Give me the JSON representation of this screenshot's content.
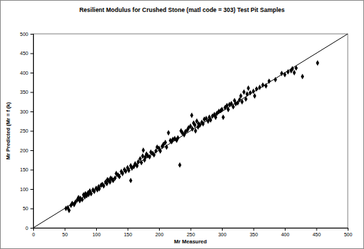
{
  "chart_data": {
    "type": "scatter",
    "title": "Resilient Modulus for Crushed Stone (matl code = 303) Test Pit Samples",
    "x_label": "Mr Measured",
    "y_label": "Mr Predicted (Mr = f (k)",
    "xlim": [
      0,
      500
    ],
    "ylim": [
      0,
      500
    ],
    "xticks": [
      0,
      50,
      100,
      150,
      200,
      250,
      300,
      350,
      400,
      450,
      500
    ],
    "yticks": [
      0,
      50,
      100,
      150,
      200,
      250,
      300,
      350,
      400,
      450,
      500
    ],
    "grid": false,
    "series": [
      {
        "type": "scatter",
        "marker": "diamond",
        "color": "#000000",
        "x": [
          52,
          55,
          57,
          60,
          62,
          65,
          67,
          70,
          72,
          74,
          75,
          78,
          80,
          82,
          83,
          85,
          87,
          88,
          90,
          92,
          95,
          97,
          100,
          102,
          104,
          105,
          108,
          110,
          112,
          115,
          117,
          118,
          120,
          122,
          123,
          125,
          127,
          130,
          132,
          135,
          137,
          140,
          142,
          145,
          147,
          150,
          152,
          155,
          155,
          157,
          160,
          162,
          165,
          167,
          170,
          172,
          174,
          175,
          177,
          178,
          180,
          182,
          185,
          187,
          190,
          192,
          195,
          197,
          200,
          202,
          205,
          207,
          210,
          212,
          215,
          218,
          220,
          222,
          225,
          228,
          230,
          233,
          235,
          237,
          240,
          242,
          245,
          247,
          250,
          252,
          253,
          255,
          257,
          258,
          260,
          262,
          263,
          265,
          268,
          270,
          272,
          275,
          278,
          280,
          282,
          285,
          288,
          290,
          292,
          295,
          298,
          300,
          302,
          305,
          308,
          310,
          312,
          315,
          318,
          320,
          322,
          325,
          328,
          330,
          332,
          335,
          338,
          340,
          342,
          345,
          350,
          352,
          355,
          360,
          365,
          370,
          375,
          385,
          395,
          400,
          405,
          410,
          412,
          415,
          418,
          428,
          452
        ],
        "values": [
          50,
          52,
          45,
          58,
          63,
          60,
          66,
          72,
          78,
          70,
          76,
          73,
          85,
          80,
          88,
          83,
          90,
          86,
          95,
          88,
          98,
          94,
          102,
          98,
          106,
          101,
          110,
          112,
          108,
          118,
          114,
          124,
          122,
          118,
          128,
          126,
          122,
          128,
          140,
          136,
          132,
          145,
          140,
          150,
          146,
          155,
          148,
          122,
          160,
          154,
          158,
          165,
          160,
          170,
          178,
          168,
          185,
          200,
          175,
          182,
          190,
          186,
          183,
          195,
          192,
          188,
          198,
          208,
          205,
          198,
          210,
          215,
          220,
          208,
          245,
          225,
          222,
          228,
          230,
          226,
          232,
          162,
          250,
          245,
          240,
          248,
          252,
          258,
          262,
          290,
          255,
          270,
          265,
          250,
          275,
          260,
          268,
          265,
          272,
          268,
          280,
          282,
          275,
          285,
          278,
          288,
          292,
          285,
          295,
          300,
          302,
          305,
          285,
          310,
          315,
          305,
          318,
          320,
          312,
          328,
          320,
          322,
          330,
          340,
          325,
          350,
          332,
          345,
          360,
          348,
          352,
          340,
          358,
          362,
          368,
          366,
          378,
          382,
          398,
          395,
          402,
          405,
          410,
          400,
          412,
          390,
          425
        ]
      },
      {
        "type": "line",
        "line_style": "solid",
        "color": "#000000",
        "x": [
          0,
          500
        ],
        "values": [
          0,
          500
        ]
      }
    ]
  }
}
